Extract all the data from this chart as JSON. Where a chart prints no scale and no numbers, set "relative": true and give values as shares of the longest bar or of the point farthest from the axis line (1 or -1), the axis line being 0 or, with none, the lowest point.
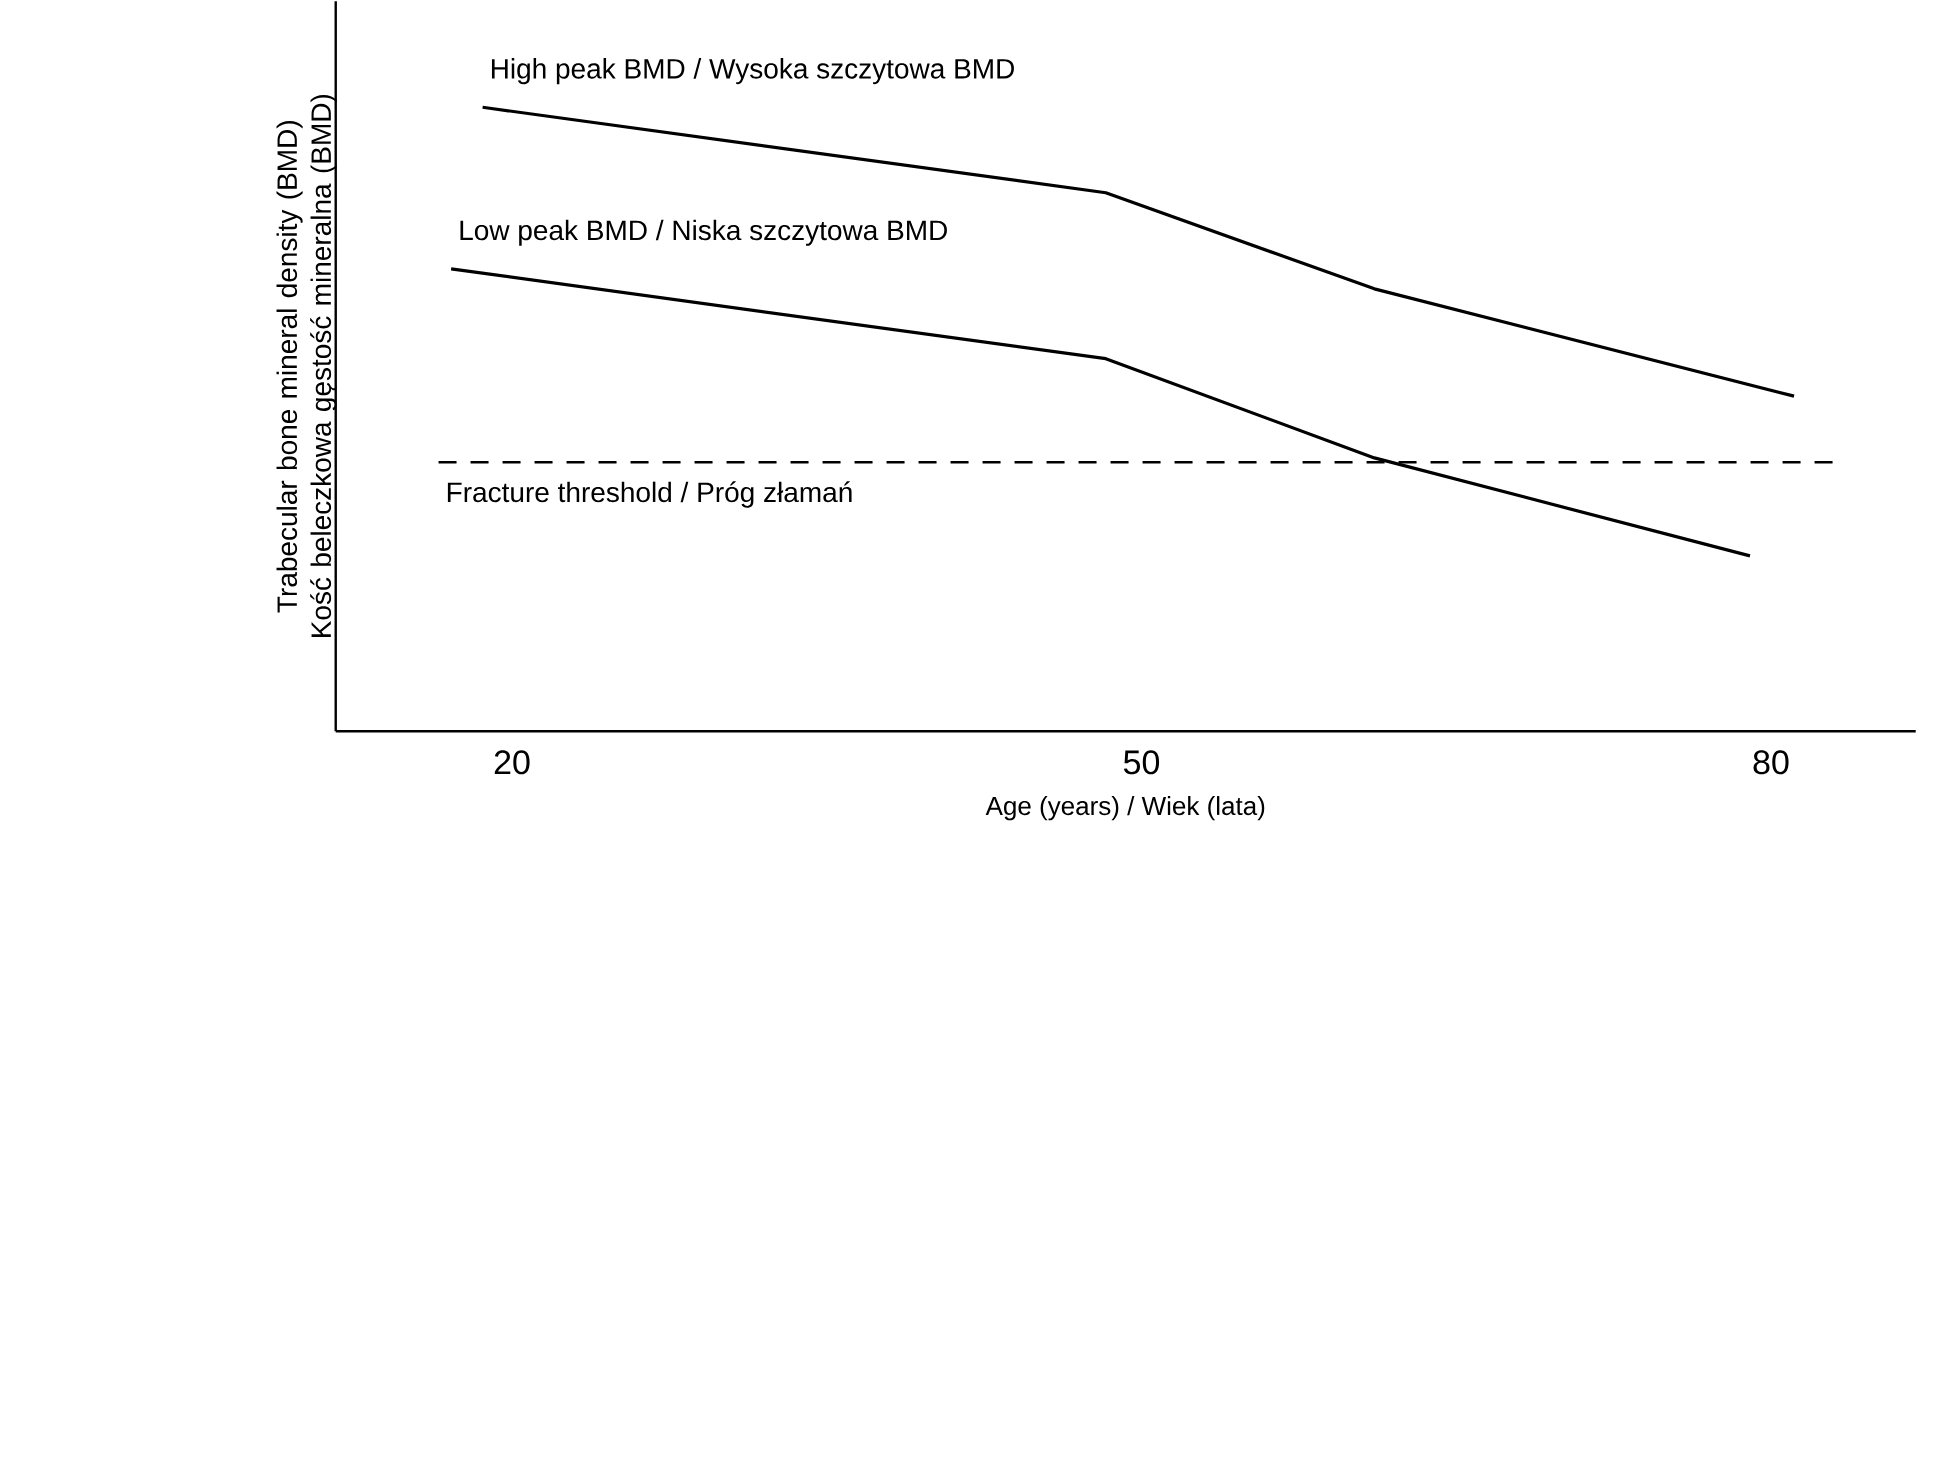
{
  "chart_data": {
    "type": "line",
    "relative": true,
    "xlabel": "Age (years) / Wiek (lata)",
    "ylabel": "Trabecular bone mineral density (BMD) Kość beleczkowa gęstość mineralna (BMD)",
    "xlim": [
      11.6,
      86.9
    ],
    "xticks": [
      20,
      50,
      80
    ],
    "legend": false,
    "grid": false,
    "marker": "none",
    "line_style": "solid",
    "series": [
      {
        "name": "High peak BMD / Wysoka szczytowa BMD",
        "color": "#000000",
        "x": [
          18.6,
          48.3,
          61.1,
          81.1
        ],
        "values": [
          1,
          0.863,
          0.709,
          0.537
        ]
      },
      {
        "name": "Low peak BMD / Niska szczytowa BMD",
        "color": "#000000",
        "x": [
          17.1,
          48.3,
          61.1,
          79
        ],
        "values": [
          0.741,
          0.597,
          0.438,
          0.281
        ]
      }
    ],
    "ref_lines": [
      {
        "axis": "y",
        "value": 0.431,
        "label": "Fracture threshold / Próg złamań",
        "color": "#000000",
        "line_style": "dashed"
      }
    ]
  }
}
